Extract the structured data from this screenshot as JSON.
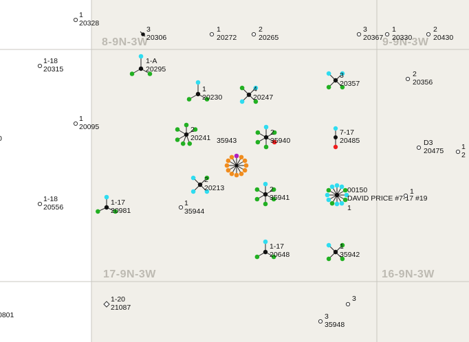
{
  "sections": [
    "8-9N-3W",
    "9-9N-3W",
    "17-9N-3W",
    "16-9N-3W"
  ],
  "wells": [
    {
      "lines": [
        "1",
        "20328"
      ]
    },
    {
      "lines": [
        "3",
        "20306"
      ]
    },
    {
      "lines": [
        "1",
        "20272"
      ]
    },
    {
      "lines": [
        "2",
        "20265"
      ]
    },
    {
      "lines": [
        "3",
        "20367"
      ]
    },
    {
      "lines": [
        "1",
        "20330"
      ]
    },
    {
      "lines": [
        "2",
        "20430"
      ]
    },
    {
      "lines": [
        "1-18",
        "20315"
      ]
    },
    {
      "lines": [
        "1-A",
        "20295"
      ]
    },
    {
      "lines": [
        "1",
        "20230"
      ]
    },
    {
      "lines": [
        "4",
        "20247"
      ]
    },
    {
      "lines": [
        "3",
        "20357"
      ]
    },
    {
      "lines": [
        "2",
        "20356"
      ]
    },
    {
      "lines": [
        "1",
        "20095"
      ]
    },
    {
      "lines": [
        "0"
      ]
    },
    {
      "lines": [
        "2",
        "20241"
      ]
    },
    {
      "lines": [
        "35943"
      ]
    },
    {
      "lines": [
        "2",
        "35940"
      ]
    },
    {
      "lines": [
        "7-17",
        "20485"
      ]
    },
    {
      "lines": [
        "D3",
        "20475"
      ]
    },
    {
      "lines": [
        "1",
        "2"
      ]
    },
    {
      "lines": [
        "2",
        "20213"
      ]
    },
    {
      "lines": [
        "2",
        "35941"
      ]
    },
    {
      "lines": [
        "00150",
        "DAVID PRICE #7-17 #19",
        "1"
      ]
    },
    {
      "lines": [
        "1"
      ]
    },
    {
      "lines": [
        "1",
        "35944"
      ]
    },
    {
      "lines": [
        "1-18",
        "20556"
      ]
    },
    {
      "lines": [
        "1-17",
        "20981"
      ]
    },
    {
      "lines": [
        "1-17",
        "20648"
      ]
    },
    {
      "lines": [
        "1",
        "35942"
      ]
    },
    {
      "lines": [
        "1-20",
        "21087"
      ]
    },
    {
      "lines": [
        "0801"
      ]
    },
    {
      "lines": [
        "3"
      ]
    },
    {
      "lines": [
        "3",
        "35948"
      ]
    }
  ]
}
